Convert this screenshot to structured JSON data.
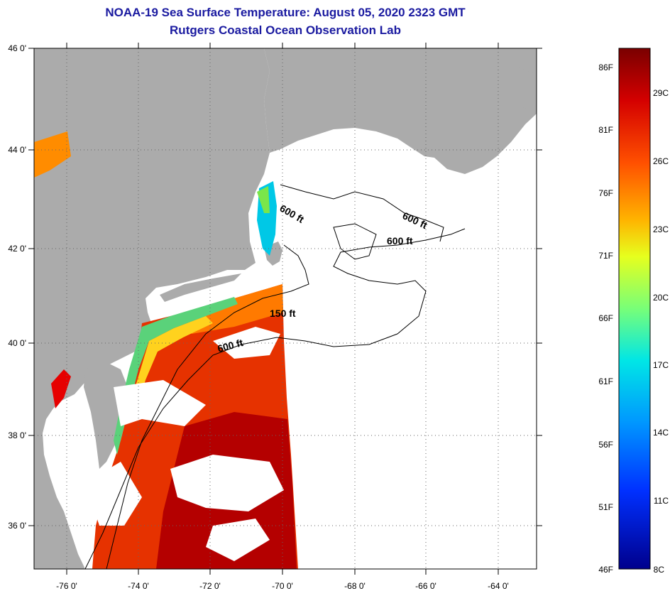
{
  "title": {
    "line1": "NOAA-19 Sea Surface Temperature:  August 05, 2020 2323 GMT",
    "line2": "Rutgers Coastal Ocean Observation Lab"
  },
  "map": {
    "lon_range": [
      -77,
      -63
    ],
    "lat_range": [
      35,
      46
    ],
    "lon_ticks": [
      "-76 0'",
      "-74 0'",
      "-72 0'",
      "-70 0'",
      "-68 0'",
      "-66 0'",
      "-64 0'"
    ],
    "lat_ticks": [
      "46 0'",
      "44 0'",
      "42 0'",
      "40 0'",
      "38 0'",
      "36 0'"
    ],
    "contour_labels": [
      "600 ft",
      "600 ft",
      "600 ft",
      "150 ft",
      "600 ft"
    ],
    "colors": {
      "land": "#ababab",
      "no_data": "#ffffff"
    }
  },
  "colorbar": {
    "fahrenheit": [
      "86F",
      "81F",
      "76F",
      "71F",
      "66F",
      "61F",
      "56F",
      "51F",
      "46F"
    ],
    "celsius": [
      "29C",
      "26C",
      "23C",
      "20C",
      "17C",
      "14C",
      "11C",
      "8C"
    ],
    "colors": [
      "#7a0000",
      "#d40000",
      "#ff5000",
      "#ffb400",
      "#e6ff1e",
      "#78ff78",
      "#00e6e6",
      "#0096ff",
      "#0030ff",
      "#00008c"
    ]
  }
}
